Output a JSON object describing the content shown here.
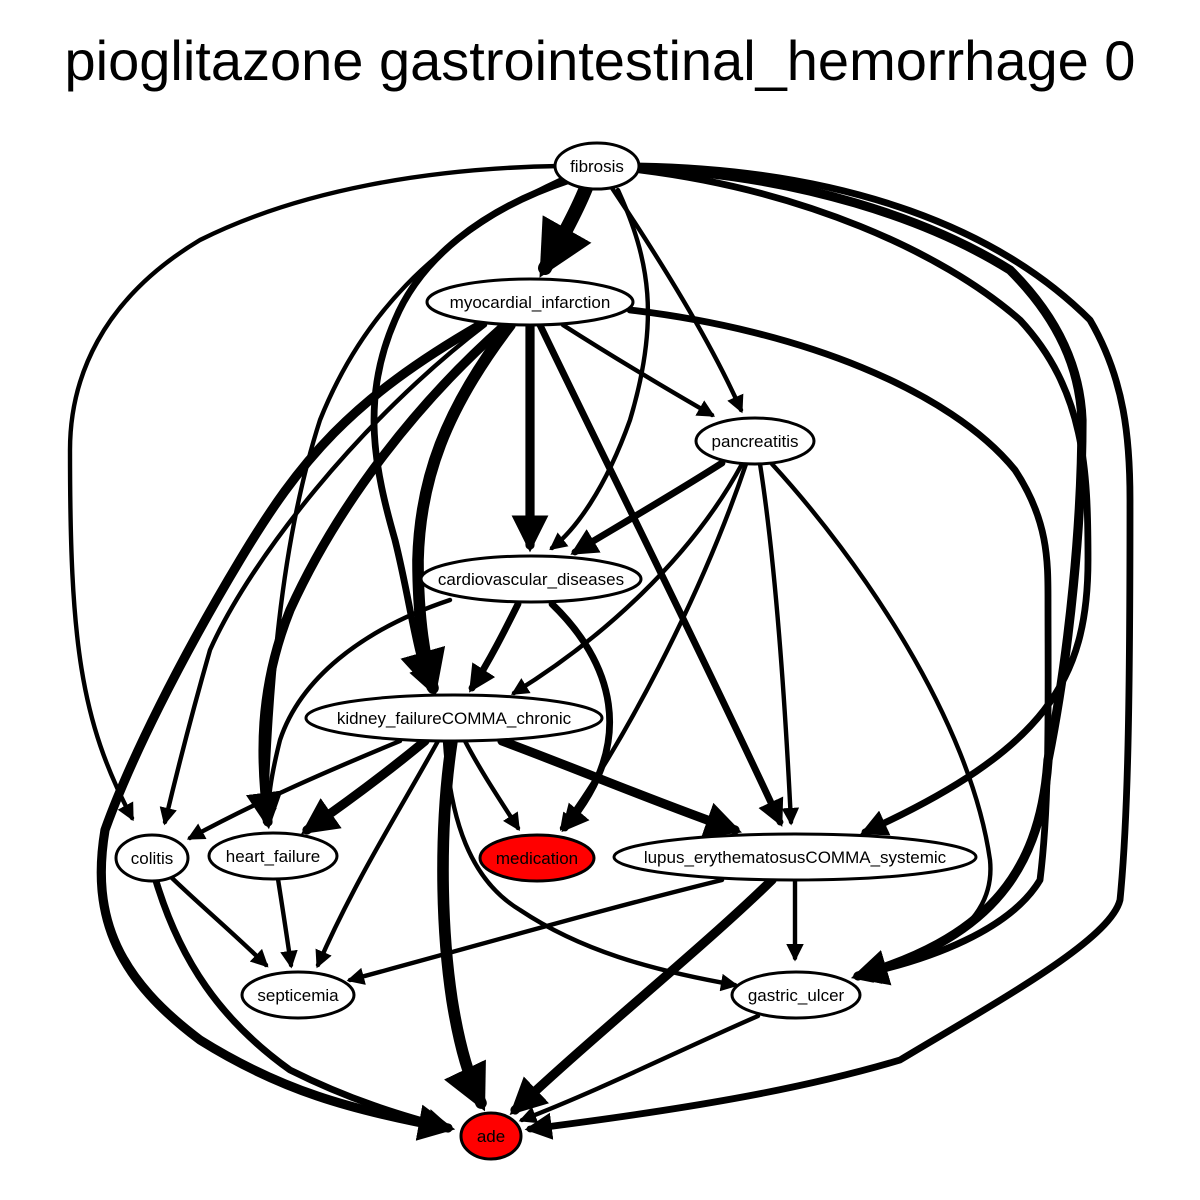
{
  "title": "pioglitazone gastrointestinal_hemorrhage 0",
  "colors": {
    "highlight": "#ff0000",
    "normal": "#ffffff",
    "stroke": "#000000"
  },
  "nodes": [
    {
      "id": "fibrosis",
      "label": "fibrosis",
      "highlight": false
    },
    {
      "id": "myocardial_infarction",
      "label": "myocardial_infarction",
      "highlight": false
    },
    {
      "id": "pancreatitis",
      "label": "pancreatitis",
      "highlight": false
    },
    {
      "id": "cardiovascular_diseases",
      "label": "cardiovascular_diseases",
      "highlight": false
    },
    {
      "id": "kidney_failure_chronic",
      "label": "kidney_failureCOMMA_chronic",
      "highlight": false
    },
    {
      "id": "colitis",
      "label": "colitis",
      "highlight": false
    },
    {
      "id": "heart_failure",
      "label": "heart_failure",
      "highlight": false
    },
    {
      "id": "medication",
      "label": "medication",
      "highlight": true
    },
    {
      "id": "lupus",
      "label": "lupus_erythematosusCOMMA_systemic",
      "highlight": false
    },
    {
      "id": "septicemia",
      "label": "septicemia",
      "highlight": false
    },
    {
      "id": "gastric_ulcer",
      "label": "gastric_ulcer",
      "highlight": false
    },
    {
      "id": "ade",
      "label": "ade",
      "highlight": true
    }
  ],
  "edges": [
    {
      "from": "fibrosis",
      "to": "myocardial_infarction",
      "weight": 5
    },
    {
      "from": "fibrosis",
      "to": "pancreatitis",
      "weight": 1
    },
    {
      "from": "fibrosis",
      "to": "cardiovascular_diseases",
      "weight": 1
    },
    {
      "from": "fibrosis",
      "to": "kidney_failure_chronic",
      "weight": 2
    },
    {
      "from": "fibrosis",
      "to": "colitis",
      "weight": 1
    },
    {
      "from": "fibrosis",
      "to": "heart_failure",
      "weight": 1
    },
    {
      "from": "fibrosis",
      "to": "lupus",
      "weight": 2
    },
    {
      "from": "fibrosis",
      "to": "gastric_ulcer",
      "weight": 3
    },
    {
      "from": "fibrosis",
      "to": "ade",
      "weight": 2
    },
    {
      "from": "myocardial_infarction",
      "to": "pancreatitis",
      "weight": 1
    },
    {
      "from": "myocardial_infarction",
      "to": "cardiovascular_diseases",
      "weight": 3
    },
    {
      "from": "myocardial_infarction",
      "to": "kidney_failure_chronic",
      "weight": 4
    },
    {
      "from": "myocardial_infarction",
      "to": "heart_failure",
      "weight": 3
    },
    {
      "from": "myocardial_infarction",
      "to": "colitis",
      "weight": 1
    },
    {
      "from": "myocardial_infarction",
      "to": "lupus",
      "weight": 2
    },
    {
      "from": "myocardial_infarction",
      "to": "ade",
      "weight": 3
    },
    {
      "from": "myocardial_infarction",
      "to": "gastric_ulcer",
      "weight": 2
    },
    {
      "from": "pancreatitis",
      "to": "cardiovascular_diseases",
      "weight": 2
    },
    {
      "from": "pancreatitis",
      "to": "kidney_failure_chronic",
      "weight": 1
    },
    {
      "from": "pancreatitis",
      "to": "medication",
      "weight": 1
    },
    {
      "from": "pancreatitis",
      "to": "lupus",
      "weight": 1
    },
    {
      "from": "pancreatitis",
      "to": "gastric_ulcer",
      "weight": 1
    },
    {
      "from": "cardiovascular_diseases",
      "to": "kidney_failure_chronic",
      "weight": 2
    },
    {
      "from": "cardiovascular_diseases",
      "to": "medication",
      "weight": 2
    },
    {
      "from": "cardiovascular_diseases",
      "to": "heart_failure",
      "weight": 1
    },
    {
      "from": "kidney_failure_chronic",
      "to": "colitis",
      "weight": 1
    },
    {
      "from": "kidney_failure_chronic",
      "to": "heart_failure",
      "weight": 3
    },
    {
      "from": "kidney_failure_chronic",
      "to": "medication",
      "weight": 1
    },
    {
      "from": "kidney_failure_chronic",
      "to": "lupus",
      "weight": 3
    },
    {
      "from": "kidney_failure_chronic",
      "to": "septicemia",
      "weight": 1
    },
    {
      "from": "kidney_failure_chronic",
      "to": "gastric_ulcer",
      "weight": 1
    },
    {
      "from": "kidney_failure_chronic",
      "to": "ade",
      "weight": 4
    },
    {
      "from": "colitis",
      "to": "septicemia",
      "weight": 1
    },
    {
      "from": "colitis",
      "to": "ade",
      "weight": 2
    },
    {
      "from": "heart_failure",
      "to": "septicemia",
      "weight": 1
    },
    {
      "from": "lupus",
      "to": "septicemia",
      "weight": 1
    },
    {
      "from": "lupus",
      "to": "gastric_ulcer",
      "weight": 1
    },
    {
      "from": "lupus",
      "to": "ade",
      "weight": 3
    },
    {
      "from": "gastric_ulcer",
      "to": "ade",
      "weight": 1
    }
  ]
}
